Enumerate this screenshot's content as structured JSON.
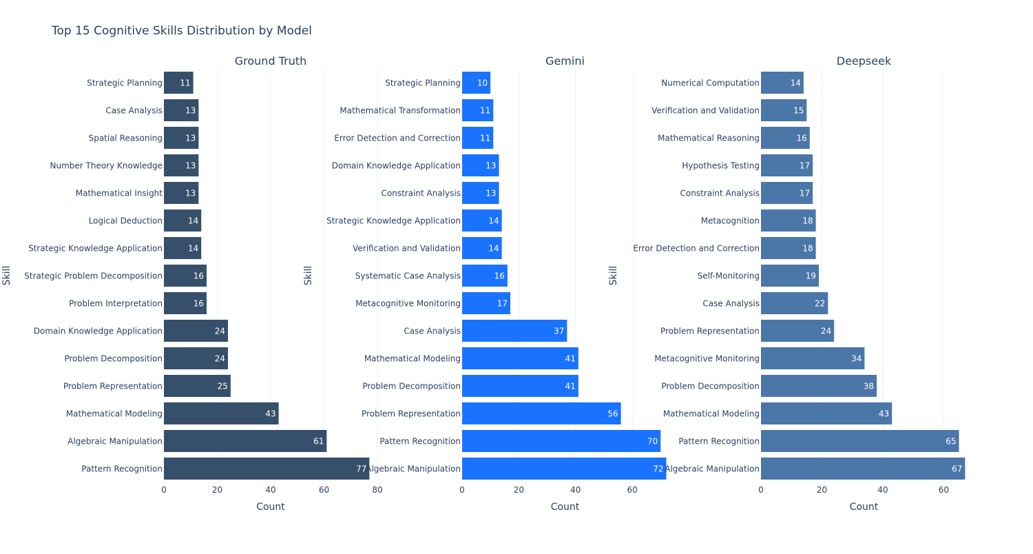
{
  "chart_data": {
    "type": "bar",
    "orientation": "horizontal",
    "title": "Top 15 Cognitive Skills Distribution by Model",
    "grid": true,
    "panels": [
      {
        "name": "Ground Truth",
        "color": "#36506b",
        "xlabel": "Count",
        "ylabel": "Skill",
        "xlim": [
          0,
          80
        ],
        "xticks": [
          0,
          20,
          40,
          60,
          80
        ],
        "categories": [
          "Strategic Planning",
          "Case Analysis",
          "Spatial Reasoning",
          "Number Theory Knowledge",
          "Mathematical Insight",
          "Logical Deduction",
          "Strategic Knowledge Application",
          "Strategic Problem Decomposition",
          "Problem Interpretation",
          "Domain Knowledge Application",
          "Problem Decomposition",
          "Problem Representation",
          "Mathematical Modeling",
          "Algebraic Manipulation",
          "Pattern Recognition"
        ],
        "values": [
          11,
          13,
          13,
          13,
          13,
          14,
          14,
          16,
          16,
          24,
          24,
          25,
          43,
          61,
          77
        ]
      },
      {
        "name": "Gemini",
        "color": "#1a73ff",
        "xlabel": "Count",
        "ylabel": "Skill",
        "xlim": [
          0,
          72.6
        ],
        "xticks": [
          0,
          20,
          40,
          60
        ],
        "categories": [
          "Strategic Planning",
          "Mathematical Transformation",
          "Error Detection and Correction",
          "Domain Knowledge Application",
          "Constraint Analysis",
          "Strategic Knowledge Application",
          "Verification and Validation",
          "Systematic Case Analysis",
          "Metacognitive Monitoring",
          "Case Analysis",
          "Mathematical Modeling",
          "Problem Decomposition",
          "Problem Representation",
          "Pattern Recognition",
          "Algebraic Manipulation"
        ],
        "values": [
          10,
          11,
          11,
          13,
          13,
          14,
          14,
          16,
          17,
          37,
          41,
          41,
          56,
          70,
          72
        ]
      },
      {
        "name": "Deepseek",
        "color": "#4a77a8",
        "xlabel": "Count",
        "ylabel": "",
        "xlim": [
          0,
          67.6
        ],
        "xticks": [
          0,
          20,
          40,
          60
        ],
        "categories": [
          "Numerical Computation",
          "Verification and Validation",
          "Mathematical Reasoning",
          "Hypothesis Testing",
          "Constraint Analysis",
          "Metacognition",
          "Error Detection and Correction",
          "Self-Monitoring",
          "Case Analysis",
          "Problem Representation",
          "Metacognitive Monitoring",
          "Problem Decomposition",
          "Mathematical Modeling",
          "Pattern Recognition",
          "Algebraic Manipulation"
        ],
        "values": [
          14,
          15,
          16,
          17,
          17,
          18,
          18,
          19,
          22,
          24,
          34,
          38,
          43,
          65,
          67
        ]
      }
    ]
  },
  "extra_axis_titles": [
    {
      "text": "Skill"
    }
  ]
}
